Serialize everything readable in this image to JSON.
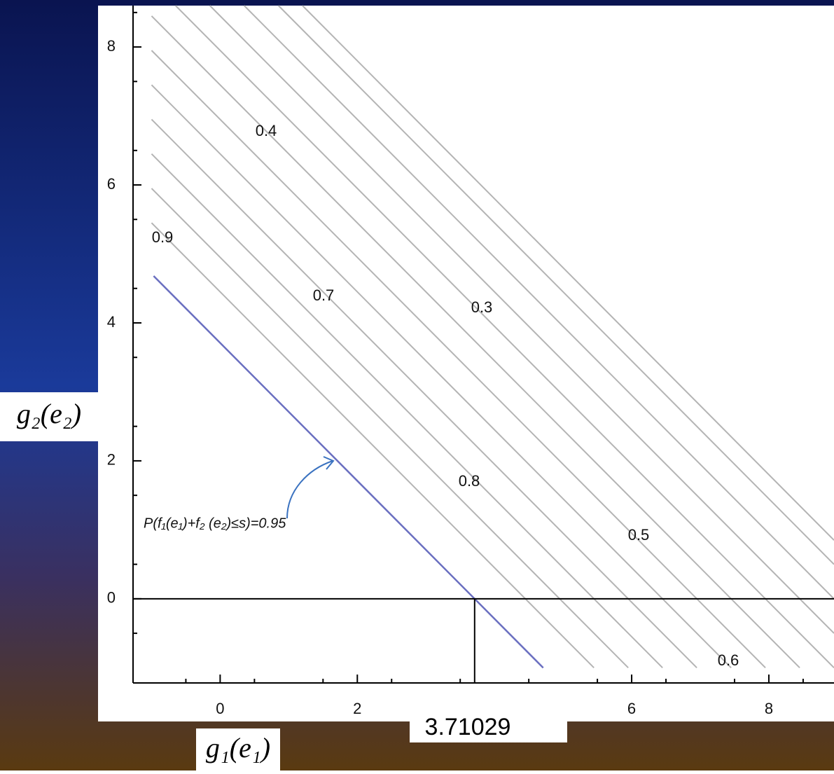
{
  "chart_data": {
    "type": "contour",
    "x_label": "g₁(e₁)",
    "y_label": "g₂(e₂)",
    "xlim": [
      -1.27,
      8.95
    ],
    "ylim": [
      -1.22,
      8.6
    ],
    "xticks": [
      0,
      2,
      6,
      8
    ],
    "yticks": [
      0,
      2,
      4,
      6,
      8
    ],
    "region": {
      "x": [
        -1,
        8.95
      ],
      "y": [
        -1,
        8.6
      ]
    },
    "contours": {
      "color": "#b4b4b4",
      "levels": [
        4.45,
        4.95,
        5.45,
        5.95,
        6.45,
        6.95,
        7.45,
        7.95,
        8.45,
        8.95,
        9.45,
        9.8
      ]
    },
    "contour_labels": [
      "0.4",
      "0.9",
      "0.7",
      "0.3",
      "0.8",
      "0.5",
      "0.6"
    ],
    "series": [
      {
        "name": "P(f₁(e₁)+f₂ (e₂)≤s)=0.95",
        "color": "#6a6fc0",
        "x": [
          -0.97,
          4.71
        ],
        "y": [
          4.68,
          -1.0
        ]
      }
    ],
    "marker_x": 3.71029
  }
}
